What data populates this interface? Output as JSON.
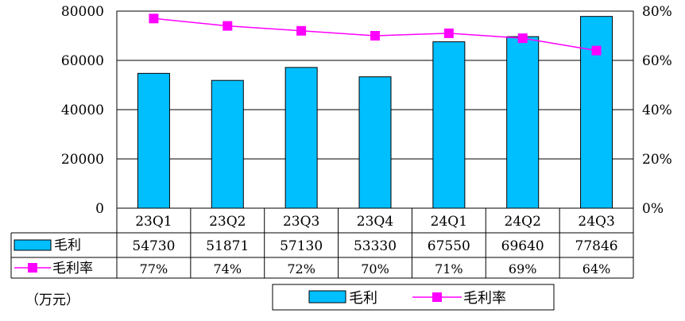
{
  "chart_data": {
    "type": "bar",
    "categories": [
      "23Q1",
      "23Q2",
      "23Q3",
      "23Q4",
      "24Q1",
      "24Q2",
      "24Q3"
    ],
    "series": [
      {
        "name": "毛利",
        "type": "bar",
        "axis": "left",
        "values": [
          54730,
          51871,
          57130,
          53330,
          67550,
          69640,
          77846
        ],
        "labels": [
          "54730",
          "51871",
          "57130",
          "53330",
          "67550",
          "69640",
          "77846"
        ],
        "color": "#00BFFF"
      },
      {
        "name": "毛利率",
        "type": "line",
        "axis": "right",
        "values": [
          77,
          74,
          72,
          70,
          71,
          69,
          64
        ],
        "labels": [
          "77%",
          "74%",
          "72%",
          "70%",
          "71%",
          "69%",
          "64%"
        ],
        "color": "#FF00FF"
      }
    ],
    "y_left": {
      "min": 0,
      "max": 80000,
      "ticks": [
        "0",
        "20000",
        "40000",
        "60000",
        "80000"
      ]
    },
    "y_right": {
      "min": 0,
      "max": 80,
      "ticks": [
        "0%",
        "20%",
        "40%",
        "60%",
        "80%"
      ]
    },
    "unit_label": "（万元）",
    "grid": true,
    "legend_position": "bottom",
    "data_table": true
  }
}
